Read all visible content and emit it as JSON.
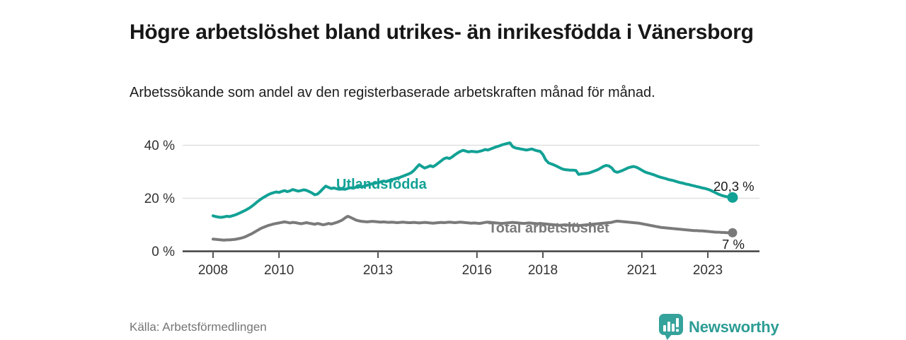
{
  "header": {
    "title": "Högre arbetslöshet bland utrikes- än inrikesfödda i Vänersborg",
    "subtitle": "Arbetssökande som andel av den registerbaserade arbetskraften månad för månad."
  },
  "chart_data": {
    "type": "line",
    "x_unit": "month",
    "x_start": "2008-01",
    "x_end": "2023-10",
    "x_tick_years": [
      2008,
      2010,
      2013,
      2016,
      2018,
      2021,
      2023
    ],
    "y_ticks": [
      {
        "value": 0,
        "label": "0 %"
      },
      {
        "value": 20,
        "label": "20 %"
      },
      {
        "value": 40,
        "label": "40 %"
      }
    ],
    "ylim": [
      0,
      44
    ],
    "grid": "horizontal-light",
    "legend_position": "inline-labels-on-lines",
    "series": [
      {
        "name": "Utlandsfödda",
        "color": "#12a195",
        "end_label": "20,3 %",
        "end_value": 20.3,
        "values": [
          13.4,
          13.1,
          12.9,
          12.8,
          13.0,
          13.2,
          13.1,
          13.4,
          13.7,
          14.1,
          14.6,
          15.1,
          15.6,
          16.2,
          16.9,
          17.7,
          18.6,
          19.4,
          20.1,
          20.7,
          21.3,
          21.8,
          22.1,
          22.4,
          22.2,
          22.6,
          22.9,
          22.5,
          22.8,
          23.3,
          23.0,
          22.7,
          22.9,
          23.2,
          23.0,
          22.5,
          22.0,
          21.3,
          21.6,
          22.5,
          23.6,
          24.6,
          24.1,
          23.7,
          23.9,
          23.6,
          23.4,
          23.5,
          23.4,
          23.7,
          24.0,
          23.8,
          24.2,
          24.5,
          24.3,
          24.6,
          24.9,
          25.2,
          25.5,
          25.7,
          25.9,
          26.2,
          26.5,
          26.3,
          26.7,
          27.0,
          27.3,
          27.6,
          27.9,
          28.3,
          28.7,
          29.1,
          29.6,
          30.4,
          31.6,
          32.7,
          32.0,
          31.4,
          31.8,
          32.3,
          31.9,
          32.5,
          33.3,
          34.1,
          34.9,
          35.3,
          35.0,
          35.6,
          36.4,
          37.1,
          37.7,
          38.1,
          37.8,
          37.5,
          37.7,
          37.6,
          37.5,
          37.7,
          38.0,
          38.4,
          38.2,
          38.6,
          39.0,
          39.4,
          39.7,
          40.1,
          40.4,
          40.7,
          40.9,
          39.5,
          39.0,
          38.8,
          38.6,
          38.4,
          38.2,
          38.4,
          38.6,
          38.2,
          37.9,
          37.7,
          36.5,
          34.5,
          33.4,
          33.0,
          32.6,
          32.1,
          31.6,
          31.1,
          30.8,
          30.7,
          30.6,
          30.6,
          30.5,
          29.0,
          29.2,
          29.3,
          29.4,
          29.6,
          30.0,
          30.4,
          30.8,
          31.4,
          32.0,
          32.4,
          32.2,
          31.5,
          30.2,
          29.8,
          30.1,
          30.5,
          31.0,
          31.5,
          31.8,
          32.0,
          31.7,
          31.2,
          30.6,
          30.0,
          29.6,
          29.3,
          29.0,
          28.6,
          28.2,
          27.9,
          27.6,
          27.3,
          27.0,
          26.8,
          26.5,
          26.2,
          25.9,
          25.7,
          25.4,
          25.2,
          24.9,
          24.7,
          24.4,
          24.2,
          23.9,
          23.7,
          23.4,
          23.0,
          22.5,
          22.0,
          21.5,
          21.1,
          20.8,
          20.6,
          20.4,
          20.3
        ]
      },
      {
        "name": "Total arbetslöshet",
        "color": "#7a7a7a",
        "end_label": "7 %",
        "end_value": 7.0,
        "values": [
          4.6,
          4.5,
          4.4,
          4.3,
          4.2,
          4.3,
          4.3,
          4.4,
          4.5,
          4.7,
          4.9,
          5.2,
          5.6,
          6.1,
          6.6,
          7.2,
          7.8,
          8.4,
          8.9,
          9.3,
          9.7,
          10.0,
          10.3,
          10.5,
          10.7,
          10.9,
          11.1,
          10.9,
          10.7,
          10.9,
          10.8,
          10.6,
          10.4,
          10.6,
          10.8,
          10.6,
          10.4,
          10.2,
          10.5,
          10.3,
          10.0,
          10.2,
          10.5,
          10.3,
          10.6,
          10.9,
          11.3,
          11.8,
          12.6,
          13.2,
          12.8,
          12.3,
          11.8,
          11.5,
          11.3,
          11.2,
          11.1,
          11.2,
          11.3,
          11.2,
          11.1,
          11.0,
          11.1,
          11.0,
          10.9,
          11.0,
          10.9,
          10.8,
          10.9,
          11.0,
          10.9,
          10.8,
          10.8,
          10.9,
          10.8,
          10.7,
          10.8,
          10.9,
          10.8,
          10.7,
          10.6,
          10.7,
          10.8,
          10.9,
          10.8,
          10.9,
          11.0,
          10.9,
          10.8,
          10.9,
          11.0,
          10.9,
          10.8,
          10.7,
          10.6,
          10.7,
          10.6,
          10.5,
          10.7,
          10.9,
          11.0,
          10.9,
          10.8,
          10.7,
          10.6,
          10.5,
          10.6,
          10.7,
          10.8,
          10.9,
          10.8,
          10.7,
          10.6,
          10.5,
          10.6,
          10.7,
          10.6,
          10.5,
          10.4,
          10.5,
          10.4,
          10.3,
          10.2,
          10.1,
          10.0,
          9.9,
          9.8,
          9.9,
          10.0,
          9.9,
          9.8,
          9.9,
          9.8,
          9.7,
          9.8,
          9.9,
          10.0,
          10.1,
          10.2,
          10.3,
          10.4,
          10.5,
          10.6,
          10.7,
          10.8,
          10.9,
          11.2,
          11.4,
          11.3,
          11.2,
          11.1,
          11.0,
          10.9,
          10.8,
          10.7,
          10.6,
          10.4,
          10.2,
          10.0,
          9.8,
          9.6,
          9.4,
          9.2,
          9.0,
          8.9,
          8.8,
          8.7,
          8.6,
          8.5,
          8.4,
          8.3,
          8.2,
          8.1,
          8.0,
          7.9,
          7.8,
          7.8,
          7.7,
          7.7,
          7.6,
          7.5,
          7.4,
          7.3,
          7.2,
          7.2,
          7.1,
          7.1,
          7.0,
          7.0,
          7.0
        ]
      }
    ]
  },
  "footer": {
    "source": "Källa: Arbetsförmedlingen",
    "brand": "Newsworthy"
  },
  "colors": {
    "accent_teal": "#12a195",
    "line_gray": "#7a7a7a",
    "grid": "#dcdcdc",
    "axis": "#404040",
    "tick_text": "#333333",
    "value_text": "#1a1a1a",
    "logo_teal": "#35a29b",
    "wordmark_teal": "#2d9c95"
  }
}
